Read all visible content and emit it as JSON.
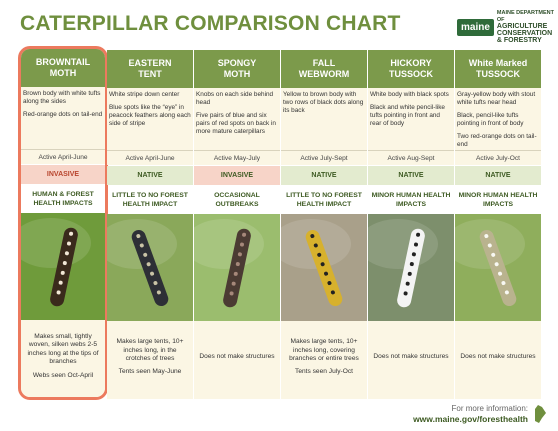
{
  "header": {
    "title": "CATERPILLAR COMPARISON CHART",
    "logo": {
      "mark": "maine",
      "lines": [
        "MAINE DEPARTMENT OF",
        "AGRICULTURE",
        "CONSERVATION",
        "& FORESTRY"
      ]
    }
  },
  "columns": [
    {
      "name": [
        "BROWNTAIL",
        "MOTH"
      ],
      "border_color": "#ec7a5e",
      "description": [
        "Brown body with white tufts along the sides",
        "Red-orange dots on tail-end"
      ],
      "active": "Active April-June",
      "status": "INVASIVE",
      "status_color": "#f7d4c8",
      "impact": "HUMAN & FOREST HEALTH IMPACTS",
      "structures": [
        "Makes small, tightly woven, silken webs 2-5 inches long at the tips of branches",
        "Webs seen Oct-April"
      ]
    },
    {
      "name": [
        "EASTERN",
        "TENT"
      ],
      "description": [
        "White stripe down center",
        "Blue spots like the “eye” in peacock feathers along each side of stripe"
      ],
      "active": "Active April-June",
      "status": "NATIVE",
      "status_color": "#e3ebcf",
      "impact": "LITTLE TO NO FOREST HEALTH IMPACT",
      "structures": [
        "Makes large tents, 10+ inches long, in the crotches of trees",
        "Tents seen May-June"
      ]
    },
    {
      "name": [
        "SPONGY",
        "MOTH"
      ],
      "description": [
        "Knobs on each side behind head",
        "Five pairs of blue and six pairs of red spots on back in more mature caterpillars"
      ],
      "active": "Active May-July",
      "status": "INVASIVE",
      "status_color": "#f7d4c8",
      "impact": "OCCASIONAL OUTBREAKS",
      "structures": [
        "Does not make structures"
      ]
    },
    {
      "name": [
        "FALL",
        "WEBWORM"
      ],
      "description": [
        "Yellow to brown body with two rows of black dots along its back"
      ],
      "active": "Active July-Sept",
      "status": "NATIVE",
      "status_color": "#e3ebcf",
      "impact": "LITTLE TO NO FOREST HEALTH IMPACT",
      "structures": [
        "Makes large tents, 10+ inches long, covering branches or entire trees",
        "Tents seen July-Oct"
      ]
    },
    {
      "name": [
        "HICKORY",
        "TUSSOCK"
      ],
      "description": [
        "White body with black spots",
        "Black and white pencil-like tufts pointing in front and rear of body"
      ],
      "active": "Active Aug-Sept",
      "status": "NATIVE",
      "status_color": "#e3ebcf",
      "impact": "MINOR HUMAN HEALTH IMPACTS",
      "structures": [
        "Does not make structures"
      ]
    },
    {
      "name": [
        "White Marked",
        "TUSSOCK"
      ],
      "description": [
        "Gray-yellow body with stout white tufts near head",
        "Black, pencil-like tufts pointing in front of body",
        "Two red-orange dots on tail-end"
      ],
      "active": "Active July-Oct",
      "status": "NATIVE",
      "status_color": "#e3ebcf",
      "impact": "MINOR HUMAN HEALTH IMPACTS",
      "structures": [
        "Does not make structures"
      ]
    }
  ],
  "footer": {
    "label": "For more information:",
    "url": "www.maine.gov/foresthealth"
  }
}
